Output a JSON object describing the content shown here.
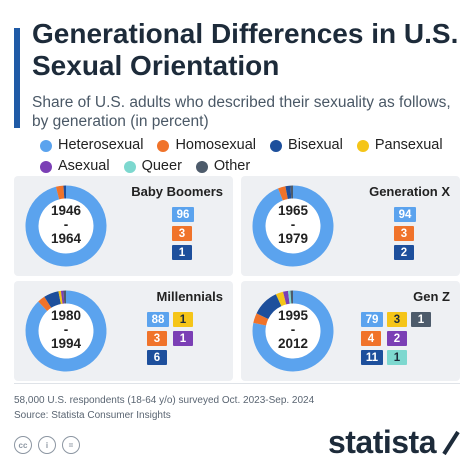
{
  "header": {
    "title": "Generational Differences in U.S. Sexual Orientation",
    "subtitle": "Share of U.S. adults who described their sexuality as follows, by generation (in percent)"
  },
  "colors": {
    "Heterosexual": "#5ba3ee",
    "Homosexual": "#f0732a",
    "Bisexual": "#1d4f9c",
    "Pansexual": "#f5c518",
    "Asexual": "#7b3fb5",
    "Queer": "#7dd8cf",
    "Other": "#4d5b6b",
    "accent": "#1f5aa6"
  },
  "legend": {
    "row1": [
      "Heterosexual",
      "Homosexual",
      "Bisexual",
      "Pansexual"
    ],
    "row2": [
      "Asexual",
      "Queer",
      "Other"
    ]
  },
  "chart_data": [
    {
      "type": "pie",
      "title": "Baby Boomers",
      "years": [
        "1946",
        "-",
        "1964"
      ],
      "categories": [
        "Heterosexual",
        "Homosexual",
        "Bisexual",
        "Pansexual",
        "Asexual",
        "Queer",
        "Other"
      ],
      "values": [
        96,
        3,
        1,
        0,
        0,
        0,
        0
      ],
      "labels": [
        {
          "category": "Heterosexual",
          "value": 96
        },
        {
          "category": "Homosexual",
          "value": 3
        },
        {
          "category": "Bisexual",
          "value": 1
        }
      ]
    },
    {
      "type": "pie",
      "title": "Generation X",
      "years": [
        "1965",
        "-",
        "1979"
      ],
      "categories": [
        "Heterosexual",
        "Homosexual",
        "Bisexual",
        "Pansexual",
        "Asexual",
        "Queer",
        "Other"
      ],
      "values": [
        94,
        3,
        2,
        0,
        0,
        0,
        1
      ],
      "labels": [
        {
          "category": "Heterosexual",
          "value": 94
        },
        {
          "category": "Homosexual",
          "value": 3
        },
        {
          "category": "Bisexual",
          "value": 2
        }
      ]
    },
    {
      "type": "pie",
      "title": "Millennials",
      "years": [
        "1980",
        "-",
        "1994"
      ],
      "categories": [
        "Heterosexual",
        "Homosexual",
        "Bisexual",
        "Pansexual",
        "Asexual",
        "Queer",
        "Other"
      ],
      "values": [
        88,
        3,
        6,
        1,
        1,
        0,
        1
      ],
      "labels": [
        {
          "category": "Heterosexual",
          "value": 88
        },
        {
          "category": "Pansexual",
          "value": 1
        },
        {
          "category": "Homosexual",
          "value": 3
        },
        {
          "category": "Asexual",
          "value": 1
        },
        {
          "category": "Bisexual",
          "value": 6
        }
      ]
    },
    {
      "type": "pie",
      "title": "Gen Z",
      "years": [
        "1995",
        "-",
        "2012"
      ],
      "categories": [
        "Heterosexual",
        "Homosexual",
        "Bisexual",
        "Pansexual",
        "Asexual",
        "Queer",
        "Other"
      ],
      "values": [
        79,
        4,
        11,
        3,
        2,
        1,
        1
      ],
      "labels": [
        {
          "category": "Heterosexual",
          "value": 79
        },
        {
          "category": "Pansexual",
          "value": 3
        },
        {
          "category": "Other",
          "value": 1
        },
        {
          "category": "Homosexual",
          "value": 4
        },
        {
          "category": "Asexual",
          "value": 2
        },
        {
          "category": "Bisexual",
          "value": 11
        },
        {
          "category": "Queer",
          "value": 1
        }
      ]
    }
  ],
  "footer": {
    "note": "58,000 U.S. respondents (18-64 y/o) surveyed Oct. 2023-Sep. 2024",
    "source": "Source: Statista Consumer Insights",
    "brand": "statista",
    "license_icons": [
      "cc",
      "i",
      "="
    ]
  }
}
